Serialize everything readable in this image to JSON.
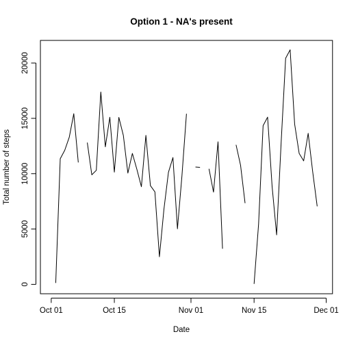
{
  "chart_data": {
    "type": "line",
    "title": "Option 1 - NA's present",
    "xlabel": "Date",
    "ylabel": "Total number of steps",
    "x_ticks": [
      "Oct 01",
      "Oct 15",
      "Nov 01",
      "Nov 15",
      "Dec 01"
    ],
    "y_ticks": [
      "0",
      "5000",
      "10000",
      "15000",
      "20000"
    ],
    "y_tick_values": [
      0,
      5000,
      10000,
      15000,
      20000
    ],
    "xlim": [
      "2012-10-01",
      "2012-11-30"
    ],
    "ylim": [
      0,
      21194
    ],
    "grid": false,
    "line_color": "#000000",
    "series": [
      {
        "dates": [
          "2012-10-01",
          "2012-10-02",
          "2012-10-03",
          "2012-10-04",
          "2012-10-05",
          "2012-10-06",
          "2012-10-07",
          "2012-10-08",
          "2012-10-09",
          "2012-10-10",
          "2012-10-11",
          "2012-10-12",
          "2012-10-13",
          "2012-10-14",
          "2012-10-15",
          "2012-10-16",
          "2012-10-17",
          "2012-10-18",
          "2012-10-19",
          "2012-10-20",
          "2012-10-21",
          "2012-10-22",
          "2012-10-23",
          "2012-10-24",
          "2012-10-25",
          "2012-10-26",
          "2012-10-27",
          "2012-10-28",
          "2012-10-29",
          "2012-10-30",
          "2012-10-31",
          "2012-11-01",
          "2012-11-02",
          "2012-11-03",
          "2012-11-04",
          "2012-11-05",
          "2012-11-06",
          "2012-11-07",
          "2012-11-08",
          "2012-11-09",
          "2012-11-10",
          "2012-11-11",
          "2012-11-12",
          "2012-11-13",
          "2012-11-14",
          "2012-11-15",
          "2012-11-16",
          "2012-11-17",
          "2012-11-18",
          "2012-11-19",
          "2012-11-20",
          "2012-11-21",
          "2012-11-22",
          "2012-11-23",
          "2012-11-24",
          "2012-11-25",
          "2012-11-26",
          "2012-11-27",
          "2012-11-28",
          "2012-11-29",
          "2012-11-30"
        ],
        "values": [
          null,
          126,
          11352,
          12116,
          13294,
          15420,
          11015,
          null,
          12811,
          9900,
          10304,
          17382,
          12426,
          15098,
          10139,
          15084,
          13452,
          10056,
          11829,
          10395,
          8821,
          13460,
          8918,
          8355,
          2492,
          6778,
          10119,
          11458,
          5018,
          9819,
          15414,
          null,
          10600,
          10571,
          null,
          10439,
          8334,
          12883,
          3219,
          null,
          null,
          12608,
          10765,
          7336,
          null,
          41,
          5441,
          14339,
          15110,
          8841,
          4472,
          12787,
          20427,
          21194,
          14478,
          11834,
          11162,
          13646,
          10183,
          7047,
          null
        ]
      }
    ]
  }
}
